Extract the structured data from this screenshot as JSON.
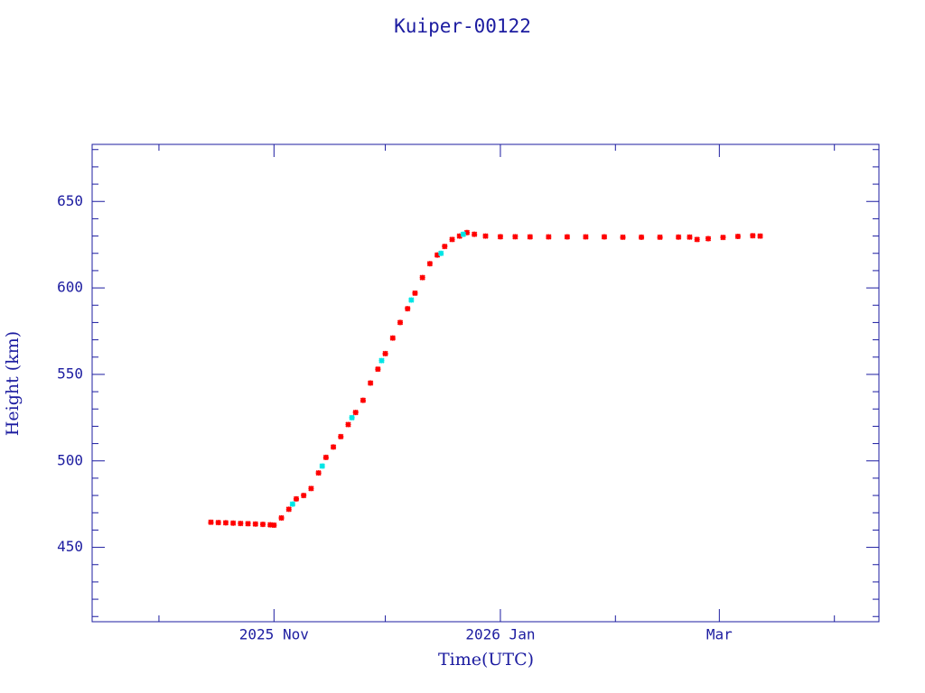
{
  "chart_data": {
    "type": "scatter",
    "title": "Kuiper-00122",
    "x_label": "Time(UTC)",
    "y_label": "Height (km)",
    "xlim": [
      -18,
      194
    ],
    "ylim": [
      407,
      683
    ],
    "xticks": [
      {
        "value": 31,
        "label": "2025 Nov"
      },
      {
        "value": 92,
        "label": "2026 Jan"
      },
      {
        "value": 151,
        "label": "Mar"
      }
    ],
    "xminorticks": [
      0,
      61,
      123,
      182
    ],
    "yticks": [
      450,
      500,
      550,
      600,
      650
    ],
    "yminorticks": [
      410,
      420,
      430,
      440,
      460,
      470,
      480,
      490,
      510,
      520,
      530,
      540,
      560,
      570,
      580,
      590,
      610,
      620,
      630,
      640,
      660,
      670,
      680
    ],
    "axis_color": "#1c1ca0",
    "series": [
      {
        "color": "#ff0000",
        "x": [
          14,
          16,
          18,
          20,
          22,
          24,
          26,
          28,
          30,
          31,
          33,
          35,
          37,
          39,
          41,
          43,
          45,
          47,
          49,
          51,
          53,
          55,
          57,
          59,
          61,
          63,
          65,
          67,
          69,
          71,
          73,
          75,
          77,
          79,
          81,
          83,
          85,
          88,
          92,
          96,
          100,
          105,
          110,
          115,
          120,
          125,
          130,
          135,
          140,
          143,
          145,
          148,
          152,
          156,
          160,
          162
        ],
        "values": [
          464.5,
          464.3,
          464.2,
          464,
          463.8,
          463.7,
          463.5,
          463.3,
          463,
          462.8,
          467,
          472,
          478,
          480,
          484,
          493,
          502,
          508,
          514,
          521,
          528,
          535,
          545,
          553,
          562,
          571,
          580,
          588,
          597,
          606,
          614,
          619,
          624,
          628,
          630,
          632,
          631,
          630,
          629.6,
          629.6,
          629.5,
          629.5,
          629.5,
          629.5,
          629.5,
          629.3,
          629.3,
          629.3,
          629.4,
          629.4,
          628,
          628.5,
          629.2,
          629.8,
          630.2,
          630
        ]
      },
      {
        "color": "#00e5e5",
        "x": [
          36,
          44,
          52,
          60,
          68,
          76,
          82
        ],
        "values": [
          475,
          497,
          525,
          558,
          593,
          620,
          631
        ]
      }
    ]
  }
}
